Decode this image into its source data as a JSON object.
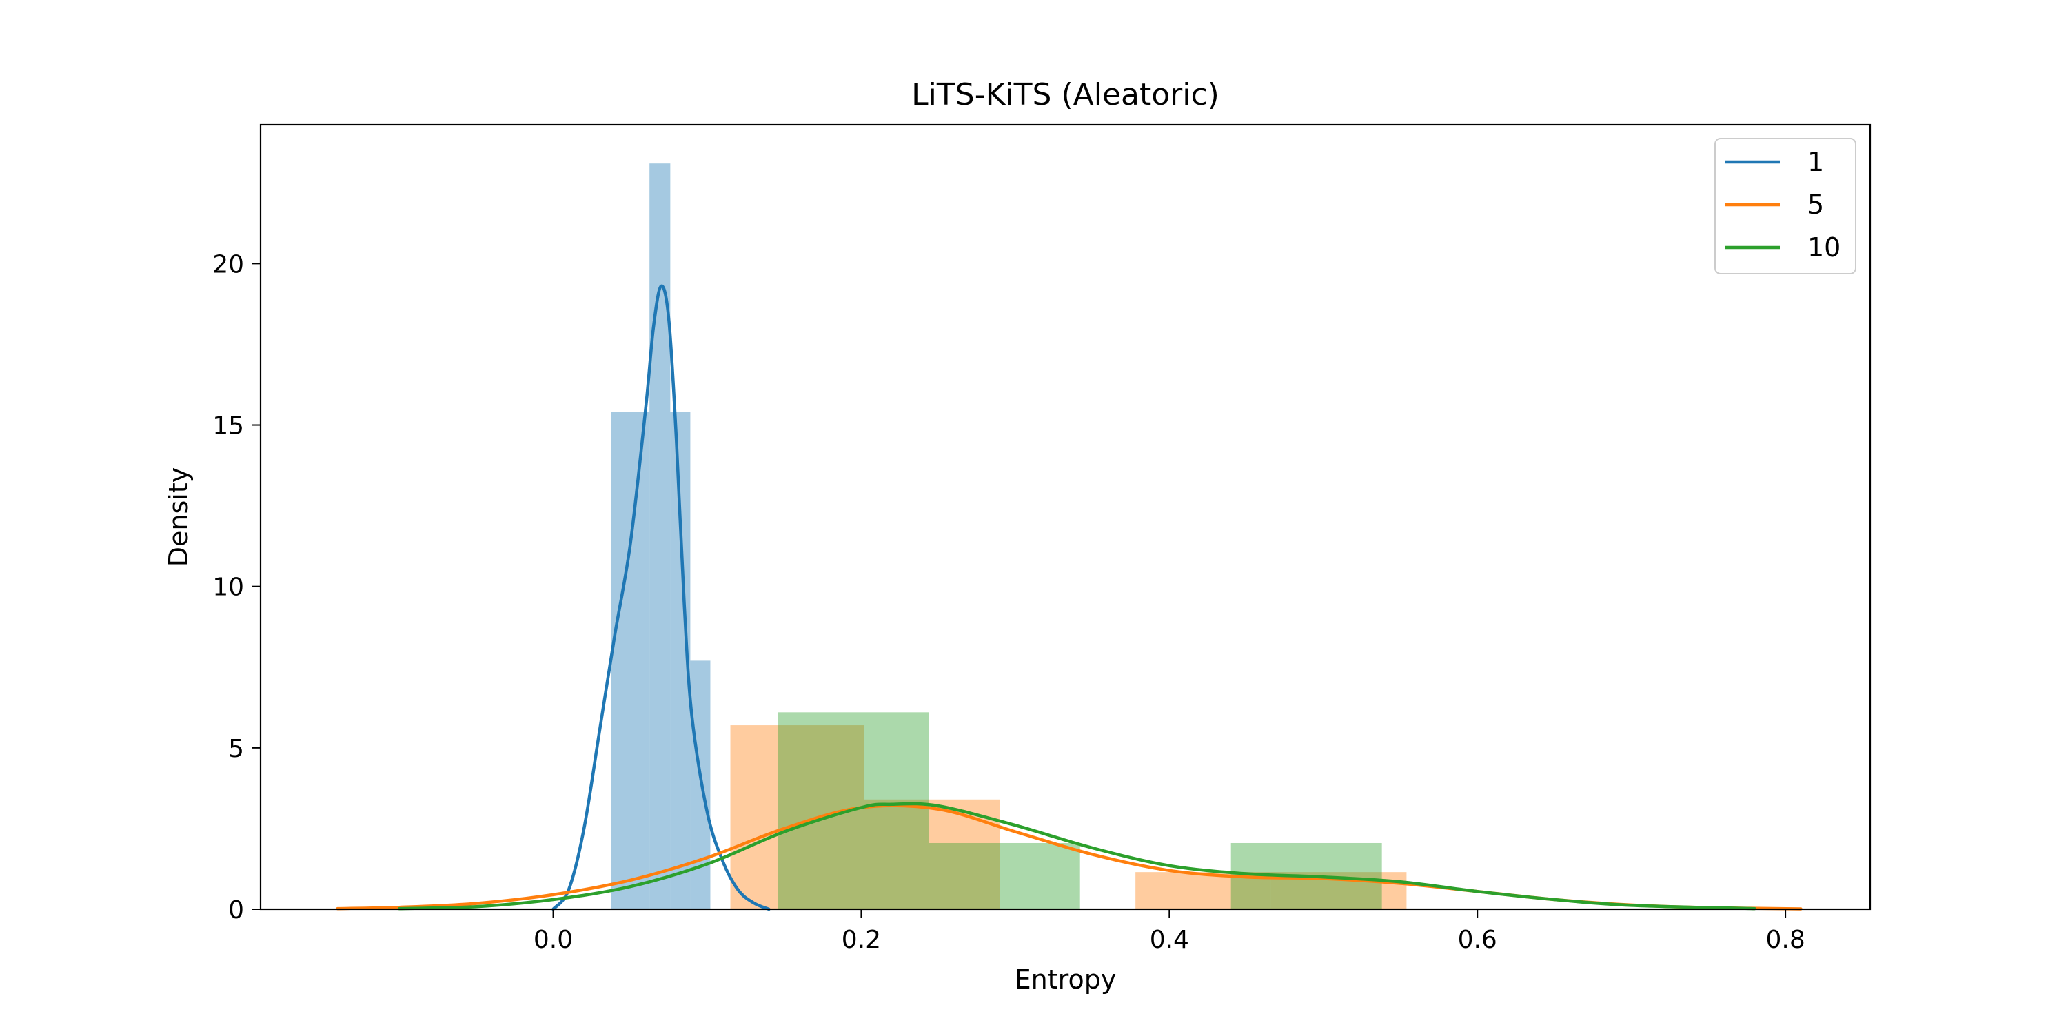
{
  "chart_data": {
    "type": "histogram",
    "title": "LiTS-KiTS (Aleatoric)",
    "xlabel": "Entropy",
    "ylabel": "Density",
    "xlim": [
      -0.19,
      0.855
    ],
    "ylim": [
      0,
      24.3
    ],
    "xticks": [
      0.0,
      0.2,
      0.4,
      0.6,
      0.8
    ],
    "xtick_labels": [
      "0.0",
      "0.2",
      "0.4",
      "0.6",
      "0.8"
    ],
    "yticks": [
      0,
      5,
      10,
      15,
      20
    ],
    "ytick_labels": [
      "0",
      "5",
      "10",
      "15",
      "20"
    ],
    "grid": false,
    "legend_position": "top-right",
    "series": [
      {
        "name": "1",
        "color": "#1f77b4",
        "hist_bins": [
          {
            "x0": 0.0375,
            "x1": 0.0625,
            "density": 15.4
          },
          {
            "x0": 0.0625,
            "x1": 0.076,
            "density": 23.1
          },
          {
            "x0": 0.076,
            "x1": 0.089,
            "density": 15.4
          },
          {
            "x0": 0.089,
            "x1": 0.102,
            "density": 7.7
          }
        ],
        "kde": {
          "x": [
            0.0,
            0.01,
            0.02,
            0.03,
            0.04,
            0.05,
            0.06,
            0.065,
            0.07,
            0.075,
            0.08,
            0.085,
            0.09,
            0.1,
            0.11,
            0.12,
            0.13,
            0.14
          ],
          "y": [
            0.0,
            0.6,
            2.5,
            5.5,
            8.5,
            11.3,
            15.5,
            18.0,
            19.3,
            18.3,
            14.5,
            9.5,
            6.0,
            3.0,
            1.5,
            0.6,
            0.2,
            0.0
          ]
        }
      },
      {
        "name": "5",
        "color": "#ff7f0e",
        "hist_bins": [
          {
            "x0": 0.115,
            "x1": 0.202,
            "density": 5.7
          },
          {
            "x0": 0.202,
            "x1": 0.29,
            "density": 3.4
          },
          {
            "x0": 0.29,
            "x1": 0.378,
            "density": 0.0
          },
          {
            "x0": 0.378,
            "x1": 0.466,
            "density": 1.15
          },
          {
            "x0": 0.466,
            "x1": 0.554,
            "density": 1.15
          }
        ],
        "kde": {
          "x": [
            -0.14,
            -0.1,
            -0.05,
            0.0,
            0.05,
            0.1,
            0.15,
            0.2,
            0.25,
            0.3,
            0.35,
            0.4,
            0.45,
            0.5,
            0.55,
            0.6,
            0.65,
            0.7,
            0.75,
            0.81
          ],
          "y": [
            0.02,
            0.06,
            0.18,
            0.45,
            0.9,
            1.6,
            2.5,
            3.15,
            3.1,
            2.4,
            1.7,
            1.2,
            1.0,
            0.95,
            0.8,
            0.55,
            0.3,
            0.13,
            0.05,
            0.01
          ]
        }
      },
      {
        "name": "10",
        "color": "#2ca02c",
        "hist_bins": [
          {
            "x0": 0.146,
            "x1": 0.244,
            "density": 6.1
          },
          {
            "x0": 0.244,
            "x1": 0.342,
            "density": 2.05
          },
          {
            "x0": 0.342,
            "x1": 0.44,
            "density": 0.0
          },
          {
            "x0": 0.44,
            "x1": 0.538,
            "density": 2.05
          }
        ],
        "kde": {
          "x": [
            -0.1,
            -0.05,
            0.0,
            0.05,
            0.1,
            0.15,
            0.2,
            0.22,
            0.25,
            0.3,
            0.35,
            0.4,
            0.45,
            0.5,
            0.55,
            0.6,
            0.65,
            0.7,
            0.78
          ],
          "y": [
            0.02,
            0.08,
            0.3,
            0.7,
            1.4,
            2.4,
            3.15,
            3.25,
            3.2,
            2.6,
            1.9,
            1.35,
            1.1,
            1.0,
            0.85,
            0.55,
            0.3,
            0.12,
            0.02
          ]
        }
      }
    ]
  }
}
